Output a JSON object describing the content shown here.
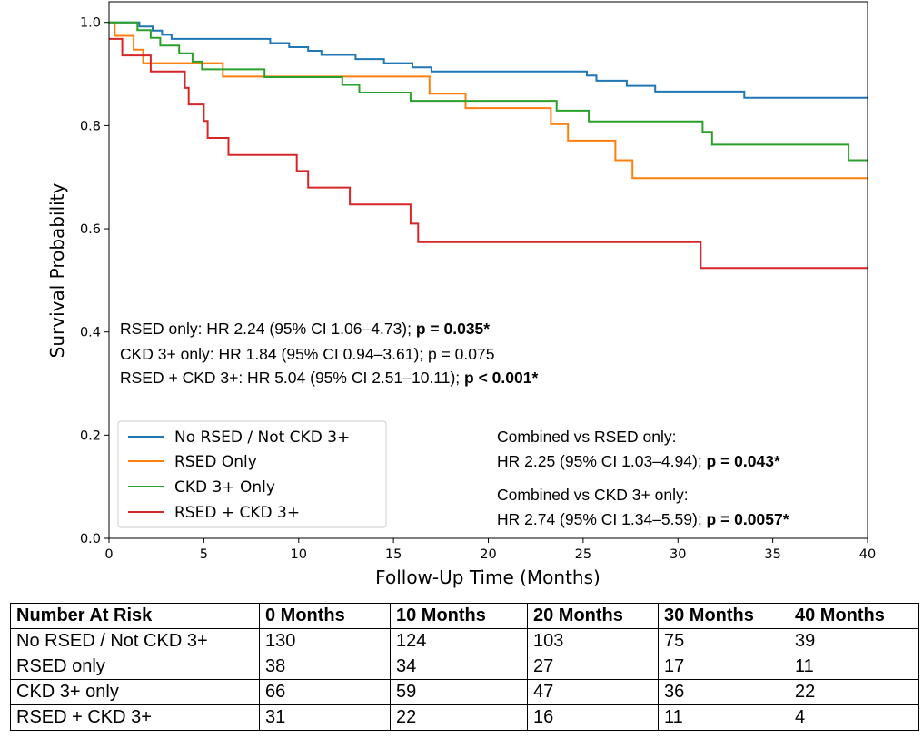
{
  "chart_data": {
    "type": "line",
    "xlabel": "Follow-Up Time (Months)",
    "ylabel": "Survival Probability",
    "xlim": [
      0,
      40
    ],
    "ylim": [
      0,
      1.04
    ],
    "xticks": [
      0,
      5,
      10,
      15,
      20,
      25,
      30,
      35,
      40
    ],
    "yticks": [
      0.0,
      0.2,
      0.4,
      0.6,
      0.8,
      1.0
    ],
    "xtick_labels": [
      "0",
      "5",
      "10",
      "15",
      "20",
      "25",
      "30",
      "35",
      "40"
    ],
    "ytick_labels": [
      "0.0",
      "0.2",
      "0.4",
      "0.6",
      "0.8",
      "1.0"
    ],
    "grid": false,
    "legend_position": "lower-left",
    "series": [
      {
        "name": "No RSED / Not CKD 3+",
        "color": "#1f77b4",
        "step_points": [
          [
            0,
            1.0
          ],
          [
            1.6,
            0.992
          ],
          [
            2.3,
            0.984
          ],
          [
            2.8,
            0.976
          ],
          [
            3.3,
            0.968
          ],
          [
            8.5,
            0.96
          ],
          [
            9.5,
            0.952
          ],
          [
            10.5,
            0.945
          ],
          [
            11.2,
            0.937
          ],
          [
            13,
            0.929
          ],
          [
            14.5,
            0.921
          ],
          [
            16,
            0.913
          ],
          [
            17,
            0.905
          ],
          [
            25.2,
            0.897
          ],
          [
            25.7,
            0.887
          ],
          [
            27.3,
            0.877
          ],
          [
            28.8,
            0.866
          ],
          [
            33.5,
            0.854
          ],
          [
            40,
            0.854
          ]
        ]
      },
      {
        "name": "RSED Only",
        "color": "#ff7f0e",
        "step_points": [
          [
            0,
            1.0
          ],
          [
            0.3,
            0.974
          ],
          [
            1.3,
            0.947
          ],
          [
            1.8,
            0.921
          ],
          [
            6.0,
            0.895
          ],
          [
            16.9,
            0.862
          ],
          [
            18.8,
            0.834
          ],
          [
            23.3,
            0.803
          ],
          [
            24.2,
            0.771
          ],
          [
            26.7,
            0.733
          ],
          [
            27.6,
            0.698
          ],
          [
            40,
            0.698
          ]
        ]
      },
      {
        "name": "CKD 3+ Only",
        "color": "#2ca02c",
        "step_points": [
          [
            0,
            1.0
          ],
          [
            1.5,
            0.985
          ],
          [
            2.2,
            0.97
          ],
          [
            2.7,
            0.955
          ],
          [
            3.7,
            0.94
          ],
          [
            4.4,
            0.924
          ],
          [
            4.9,
            0.909
          ],
          [
            8.2,
            0.894
          ],
          [
            12.3,
            0.879
          ],
          [
            13.2,
            0.864
          ],
          [
            15.9,
            0.848
          ],
          [
            23.6,
            0.829
          ],
          [
            25.3,
            0.808
          ],
          [
            31.3,
            0.788
          ],
          [
            31.8,
            0.763
          ],
          [
            39.0,
            0.733
          ],
          [
            40,
            0.733
          ]
        ]
      },
      {
        "name": "RSED + CKD 3+",
        "color": "#d62728",
        "step_points": [
          [
            0,
            0.968
          ],
          [
            0.7,
            0.936
          ],
          [
            2.2,
            0.905
          ],
          [
            4.0,
            0.873
          ],
          [
            4.2,
            0.841
          ],
          [
            5.0,
            0.809
          ],
          [
            5.2,
            0.776
          ],
          [
            6.3,
            0.743
          ],
          [
            9.9,
            0.712
          ],
          [
            10.5,
            0.68
          ],
          [
            12.7,
            0.647
          ],
          [
            15.9,
            0.61
          ],
          [
            16.3,
            0.574
          ],
          [
            31.2,
            0.524
          ],
          [
            40,
            0.524
          ]
        ]
      }
    ],
    "annotations": {
      "lines": [
        {
          "text": "RSED only: HR 2.24 (95% CI 1.06–4.73); ",
          "bold": "p = 0.035*"
        },
        {
          "text": "CKD 3+ only: HR 1.84 (95% CI 0.94–3.61); p = 0.075",
          "bold": ""
        },
        {
          "text": "RSED + CKD 3+: HR 5.04 (95% CI 2.51–10.11); ",
          "bold": "p < 0.001*"
        }
      ],
      "combined": [
        {
          "text": "Combined vs RSED only:",
          "bold": ""
        },
        {
          "text": "HR 2.25 (95% CI 1.03–4.94); ",
          "bold": "p = 0.043*"
        },
        {
          "text": "Combined vs CKD 3+ only:",
          "bold": ""
        },
        {
          "text": "HR 2.74 (95% CI 1.34–5.59); ",
          "bold": "p = 0.0057*"
        }
      ]
    }
  },
  "risk_table": {
    "header": [
      "Number At Risk",
      "0 Months",
      "10 Months",
      "20 Months",
      "30 Months",
      "40 Months"
    ],
    "rows": [
      [
        "No RSED / Not CKD 3+",
        "130",
        "124",
        "103",
        "75",
        "39"
      ],
      [
        "RSED only",
        "38",
        "34",
        "27",
        "17",
        "11"
      ],
      [
        "CKD 3+ only",
        "66",
        "59",
        "47",
        "36",
        "22"
      ],
      [
        "RSED + CKD 3+",
        "31",
        "22",
        "16",
        "11",
        "4"
      ]
    ]
  }
}
